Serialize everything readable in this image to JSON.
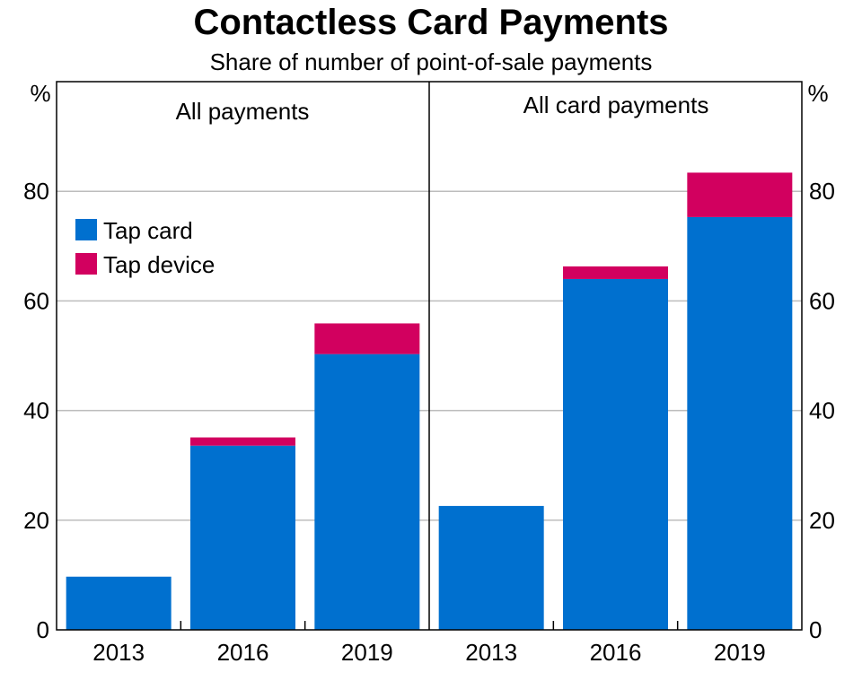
{
  "chart_data": {
    "type": "bar",
    "stacked": true,
    "title": "Contactless Card Payments",
    "subtitle": "Share of number of point-of-sale payments",
    "unit": "%",
    "ylim": [
      0,
      100
    ],
    "yticks": [
      "0",
      "20",
      "40",
      "60",
      "80"
    ],
    "grid": true,
    "legend_placement": "left panel, upper-left",
    "colors": {
      "Tap card": "#0070cf",
      "Tap device": "#d2005f"
    },
    "panels": [
      {
        "name": "All payments",
        "categories": [
          "2013",
          "2016",
          "2019"
        ],
        "series": [
          {
            "name": "Tap card",
            "values": [
              9.7,
              33.6,
              50.3
            ]
          },
          {
            "name": "Tap device",
            "values": [
              0,
              1.5,
              5.6
            ]
          }
        ]
      },
      {
        "name": "All card payments",
        "categories": [
          "2013",
          "2016",
          "2019"
        ],
        "series": [
          {
            "name": "Tap card",
            "values": [
              22.6,
              64.0,
              75.3
            ]
          },
          {
            "name": "Tap device",
            "values": [
              0,
              2.3,
              8.1
            ]
          }
        ]
      }
    ]
  }
}
